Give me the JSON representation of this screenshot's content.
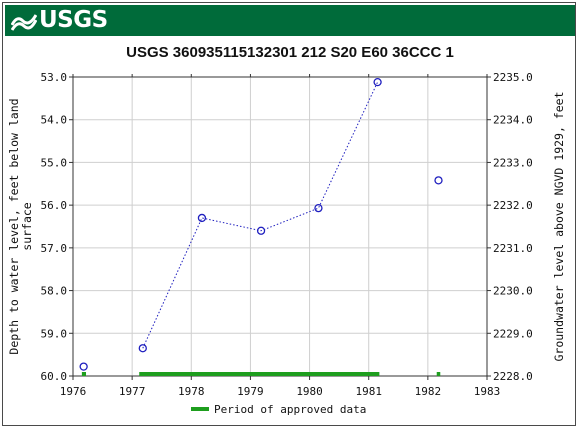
{
  "header": {
    "agency": "USGS"
  },
  "chart_data": {
    "type": "scatter",
    "title": "USGS 360935115132301 212  S20 E60 36CCC 1",
    "ylabel_left_lines": [
      "Depth to water level, feet below land",
      "surface"
    ],
    "ylabel_right": "Groundwater level above NGVD 1929, feet",
    "xlim": [
      1976,
      1983
    ],
    "ylim_left": [
      53.0,
      60.0
    ],
    "ylim_right": [
      2228.0,
      2235.0
    ],
    "left_axis_inverted": true,
    "grid": true,
    "x_ticks": [
      1976,
      1977,
      1978,
      1979,
      1980,
      1981,
      1982,
      1983
    ],
    "x_tick_labels": [
      "1976",
      "1977",
      "1978",
      "1979",
      "1980",
      "1981",
      "1982",
      "1983"
    ],
    "y_left_ticks": [
      53.0,
      54.0,
      55.0,
      56.0,
      57.0,
      58.0,
      59.0,
      60.0
    ],
    "y_left_tick_labels": [
      "53.0",
      "54.0",
      "55.0",
      "56.0",
      "57.0",
      "58.0",
      "59.0",
      "60.0"
    ],
    "y_right_ticks": [
      2235.0,
      2234.0,
      2233.0,
      2232.0,
      2231.0,
      2230.0,
      2229.0,
      2228.0
    ],
    "y_right_tick_labels": [
      "2235.0",
      "2234.0",
      "2233.0",
      "2232.0",
      "2231.0",
      "2230.0",
      "2229.0",
      "2228.0"
    ],
    "series": [
      {
        "x": [
          1976.18,
          1977.18,
          1978.18,
          1979.18,
          1980.15,
          1981.15,
          1982.18
        ],
        "y": [
          59.78,
          59.35,
          56.3,
          56.6,
          56.07,
          53.12,
          55.42
        ],
        "connected_segments": [
          [
            1,
            2,
            3,
            4,
            5
          ]
        ],
        "color": "#1f1fbf"
      }
    ],
    "approved_periods": [
      [
        1976.15,
        1976.22
      ],
      [
        1977.12,
        1981.18
      ],
      [
        1982.15,
        1982.21
      ]
    ],
    "approved_color": "#1e9e1e",
    "legend": {
      "label": "Period of approved data",
      "placement": "bottom-center"
    }
  }
}
